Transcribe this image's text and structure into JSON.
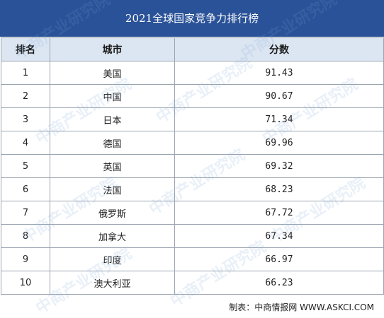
{
  "title": "2021全球国家竞争力排行榜",
  "headers": {
    "rank": "排名",
    "city": "城市",
    "score": "分数"
  },
  "rows": [
    {
      "rank": "1",
      "city": "美国",
      "score": "91.43"
    },
    {
      "rank": "2",
      "city": "中国",
      "score": "90.67"
    },
    {
      "rank": "3",
      "city": "日本",
      "score": "71.34"
    },
    {
      "rank": "4",
      "city": "德国",
      "score": "69.96"
    },
    {
      "rank": "5",
      "city": "英国",
      "score": "69.32"
    },
    {
      "rank": "6",
      "city": "法国",
      "score": "68.23"
    },
    {
      "rank": "7",
      "city": "俄罗斯",
      "score": "67.72"
    },
    {
      "rank": "8",
      "city": "加拿大",
      "score": "67.34"
    },
    {
      "rank": "9",
      "city": "印度",
      "score": "66.97"
    },
    {
      "rank": "10",
      "city": "澳大利亚",
      "score": "66.23"
    }
  ],
  "source": "制表：中商情报网 WWW.ASKCI.COM",
  "watermark": "中商产业研究院"
}
